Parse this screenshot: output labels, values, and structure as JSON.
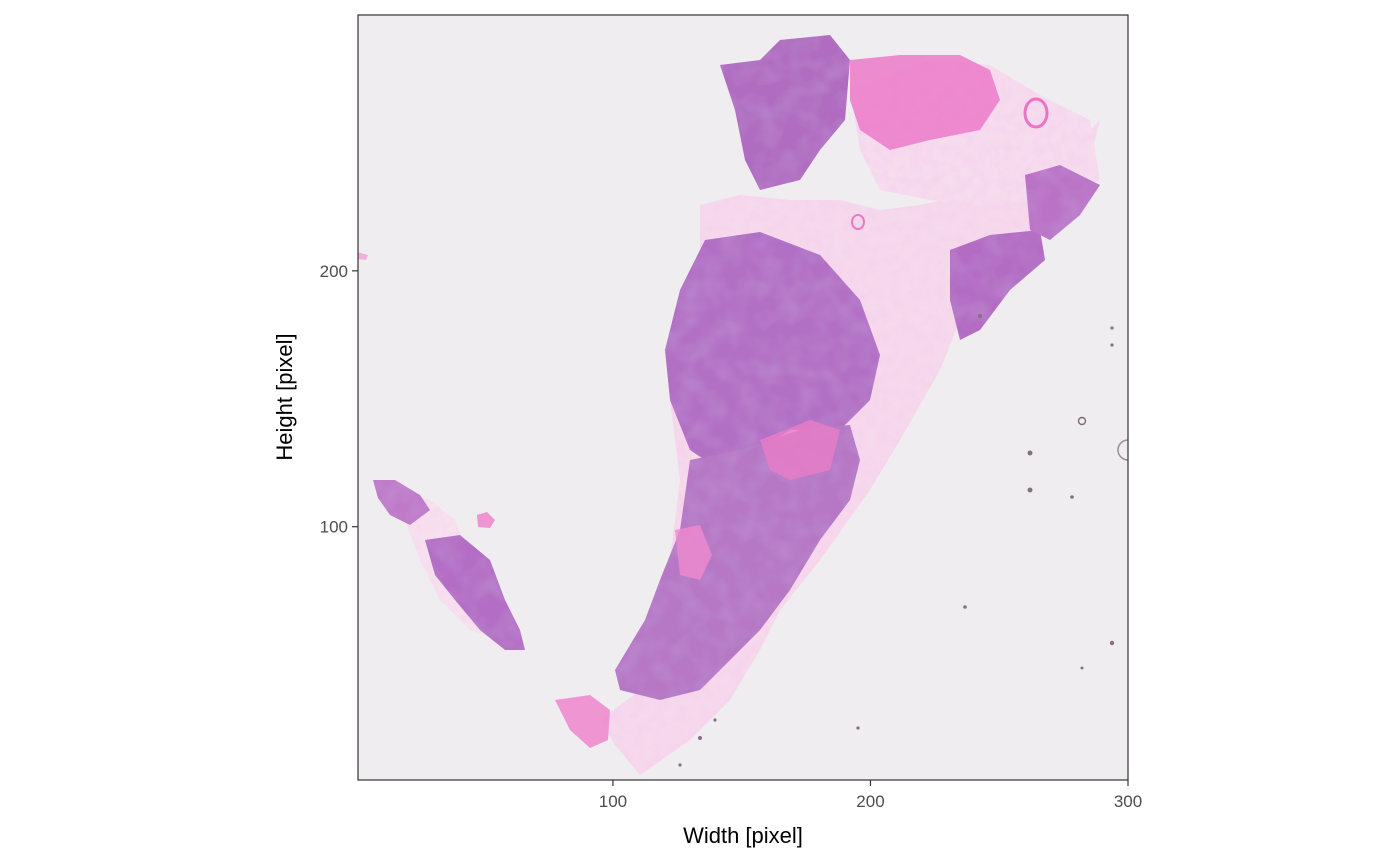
{
  "chart_data": {
    "type": "image",
    "xlabel": "Width [pixel]",
    "ylabel": "Height [pixel]",
    "xlim": [
      1,
      300
    ],
    "ylim": [
      1,
      300
    ],
    "x_ticks": [
      100,
      200,
      300
    ],
    "y_ticks": [
      100,
      200
    ],
    "x_tick_labels": [
      "100",
      "200",
      "300"
    ],
    "y_tick_labels": [
      "100",
      "200"
    ],
    "grid": false,
    "legend": "none",
    "image_content": "H&E stained tissue section",
    "colors": {
      "background": "#efedf0",
      "tissue_purple": "#b26cc2",
      "tissue_pink": "#ee86cc",
      "stroma_light": "#f6d9ec",
      "panel_border": "#333333"
    }
  }
}
